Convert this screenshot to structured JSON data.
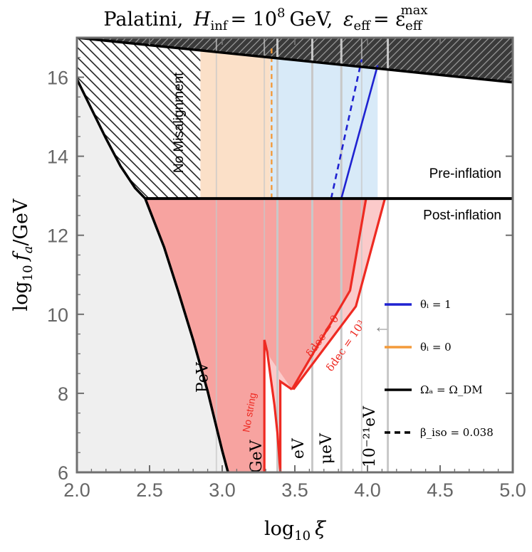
{
  "chart_data": {
    "type": "area",
    "title": {
      "prefix": "Palatini,",
      "h_sym": "H",
      "h_sub": "inf",
      "eq1": "= 10",
      "exp": "8",
      "unit": "GeV,",
      "eps_sym": "ε",
      "eps_sub": "eff",
      "eq2": "= ε",
      "eps2_sub": "eff",
      "eps2_sup": "max"
    },
    "xlabel": {
      "base": "log",
      "sub": "10",
      "var": "ξ"
    },
    "ylabel": {
      "base": "log",
      "sub": "10",
      "var": "f",
      "var_sub": "a",
      "rest": "/GeV"
    },
    "xlim": [
      2.0,
      5.0
    ],
    "ylim": [
      6,
      17
    ],
    "xticks": [
      2.0,
      2.5,
      3.0,
      3.5,
      4.0,
      4.5,
      5.0
    ],
    "yticks": [
      6,
      8,
      10,
      12,
      14,
      16
    ],
    "xtick_labels": [
      "2.0",
      "2.5",
      "3.0",
      "3.5",
      "4.0",
      "4.5",
      "5.0"
    ],
    "ytick_labels": [
      "6",
      "8",
      "10",
      "12",
      "14",
      "16"
    ],
    "boundary_y": 12.93,
    "region_labels": {
      "pre_inflation": "Pre-inflation",
      "post_inflation": "Post-inflation",
      "no_misalignment": "No Misalignment",
      "no_string": "No string"
    },
    "mass_lines": [
      {
        "label": "PeV",
        "x": 2.0
      },
      {
        "label": "GeV",
        "x": 3.38
      },
      {
        "label": "eV",
        "x": 3.62
      },
      {
        "label": "μeV",
        "x": 3.82
      },
      {
        "label": "10⁻²¹eV",
        "x": 4.14
      }
    ],
    "mass_line_label_positions": {
      "PeV": [
        2.9,
        8.4
      ],
      "GeV": [
        3.27,
        6.4
      ],
      "eV": [
        3.56,
        6.6
      ],
      "μeV": [
        3.75,
        6.6
      ],
      "10⁻²¹eV": [
        4.05,
        6.9
      ]
    },
    "extra_vlines": [
      2.96,
      3.29,
      3.96
    ],
    "omega_dm_curve": {
      "name": "Ω_a = Ω_DM",
      "x": [
        2.0,
        2.1,
        2.2,
        2.3,
        2.4,
        2.47,
        2.6,
        2.7,
        2.8,
        2.9,
        3.0,
        3.04
      ],
      "y": [
        15.95,
        15.2,
        14.45,
        13.75,
        13.2,
        12.93,
        11.7,
        10.55,
        9.35,
        8.05,
        6.55,
        6.0
      ]
    },
    "ceiling": {
      "x": [
        2.0,
        5.0
      ],
      "y": [
        17.0,
        15.87
      ]
    },
    "orange_band": {
      "x_min": 2.85,
      "x_max": 3.33
    },
    "blue_band": {
      "x_min": 3.33,
      "x_max": 4.07
    },
    "orange_dashed_x": 3.34,
    "blue_solid": {
      "x": [
        3.82,
        4.07
      ],
      "y": [
        12.93,
        16.3
      ]
    },
    "blue_dashed": {
      "x": [
        3.75,
        3.96
      ],
      "y": [
        12.93,
        16.45
      ]
    },
    "delta_dec_0": {
      "label": "δdec = 0",
      "x": [
        3.48,
        3.88,
        3.99
      ],
      "y": [
        8.1,
        10.6,
        12.93
      ]
    },
    "delta_dec_1e3": {
      "label": "δdec = 10³",
      "x": [
        3.49,
        3.92,
        4.12
      ],
      "y": [
        8.1,
        10.2,
        12.93
      ]
    },
    "no_string_curve": {
      "x": [
        3.29,
        3.29,
        3.31,
        3.33,
        3.36,
        3.38,
        3.4
      ],
      "y": [
        6.0,
        9.35,
        9.05,
        8.5,
        7.7,
        7.0,
        6.0
      ]
    },
    "no_string_inner": {
      "x": [
        3.4,
        3.4,
        3.48
      ],
      "y": [
        6.0,
        8.3,
        8.1
      ]
    },
    "legend": [
      {
        "label": "θᵢ = 1",
        "color": "#1f22d1",
        "style": "solid"
      },
      {
        "label": "θᵢ = 0",
        "color": "#f39a3a",
        "style": "solid"
      },
      {
        "label": "Ωₐ = Ω_DM",
        "color": "#000000",
        "style": "solid"
      },
      {
        "label": "β_iso = 0.038",
        "color": "#000000",
        "style": "dashed"
      }
    ],
    "arrow_symbol": "←",
    "colors": {
      "red": "#ee2a22",
      "red_fill": "#f7a3a0",
      "red_fill_light": "#fbcaca",
      "orange_fill": "#fbe0c8",
      "blue_fill": "#d8eaf8",
      "grey_fill": "#efefef",
      "blue": "#1f22d1",
      "orange": "#f39a3a",
      "vline": "#c8c8c8"
    }
  }
}
